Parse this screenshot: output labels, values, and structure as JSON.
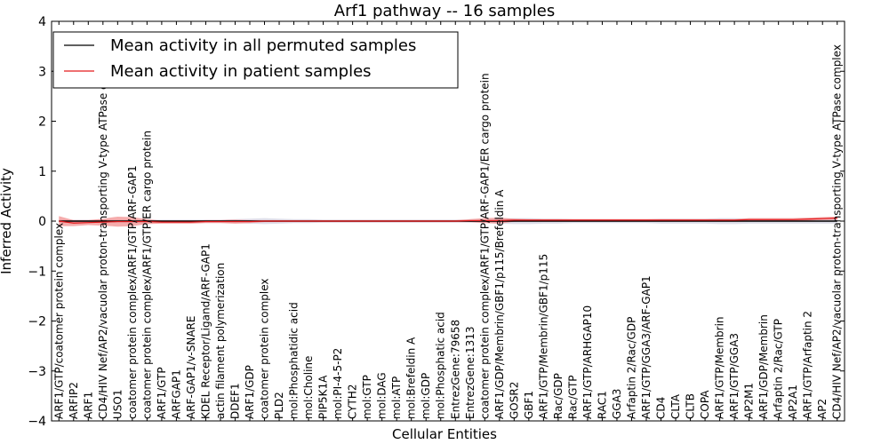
{
  "chart_data": {
    "type": "line",
    "title": "Arf1 pathway -- 16 samples",
    "xlabel": "Cellular Entities",
    "ylabel": "Inferred Activity",
    "ylim": [
      -4,
      4
    ],
    "yticks": [
      "−4",
      "−3",
      "−2",
      "−1",
      "0",
      "1",
      "2",
      "3",
      "4"
    ],
    "legend_position": "top-left",
    "categories": [
      "ARF1/GTP/coatomer protein complex",
      "ARFIP2",
      "ARF1",
      "CD4/HIV Nef/AP2/vacuolar proton-transporting V-type ATPase complex",
      "USO1",
      "coatomer protein complex/ARF1/GTP/ARF-GAP1",
      "coatomer protein complex/ARF1/GTP/ER cargo protein",
      "ARF1/GTP",
      "ARFGAP1",
      "ARF-GAP1/v-SNARE",
      "KDEL Receptor/Ligand/ARF-GAP1",
      "actin filament polymerization",
      "DDEF1",
      "ARF1/GDP",
      "coatomer protein complex",
      "PLD2",
      "mol:Phosphatidic acid",
      "mol:Choline",
      "PIP5K1A",
      "mol:PI-4-5-P2",
      "CYTH2",
      "mol:GTP",
      "mol:DAG",
      "mol:ATP",
      "mol:Brefeldin A",
      "mol:GDP",
      "mol:Phosphatic acid",
      "EntrezGene:79658",
      "EntrezGene:1313",
      "coatomer protein complex/ARF1/GTP/ARF-GAP1/ER cargo protein",
      "ARF1/GDP/Membrin/GBF1/p115/Brefeldin A",
      "GOSR2",
      "GBF1",
      "ARF1/GTP/Membrin/GBF1/p115",
      "Rac/GDP",
      "Rac/GTP",
      "ARF1/GTP/ARHGAP10",
      "RAC1",
      "GGA3",
      "Arfaptin 2/Rac/GDP",
      "ARF1/GTP/GGA3/ARF-GAP1",
      "CD4",
      "CLTA",
      "CLTB",
      "COPA",
      "ARF1/GTP/Membrin",
      "ARF1/GTP/GGA3",
      "AP2M1",
      "ARF1/GDP/Membrin",
      "Arfaptin 2/Rac/GTP",
      "AP2A1",
      "ARF1/GTP/Arfaptin 2",
      "AP2",
      "CD4/HIV Nef/AP2/vacuolar proton-transporting V-type ATPase complex"
    ],
    "series": [
      {
        "name": "Mean activity in all permuted samples",
        "color": "#000000",
        "values": [
          0,
          0,
          0,
          0,
          0,
          0,
          0,
          0,
          0,
          0,
          0,
          0,
          0,
          0,
          0,
          0,
          0,
          0,
          0,
          0,
          0,
          0,
          0,
          0,
          0,
          0,
          0,
          0,
          0,
          0,
          0,
          0,
          0,
          0,
          0,
          0,
          0,
          0,
          0,
          0,
          0,
          0,
          0,
          0,
          0,
          0,
          0,
          0,
          0,
          0,
          0,
          0,
          0,
          0
        ],
        "band_halfwidth": [
          0.03,
          0.03,
          0.03,
          0.03,
          0.03,
          0.03,
          0.03,
          0.03,
          0.03,
          0.03,
          0.03,
          0.03,
          0.04,
          0.05,
          0.06,
          0.05,
          0.04,
          0.04,
          0.03,
          0.03,
          0.03,
          0.03,
          0.03,
          0.03,
          0.03,
          0.03,
          0.03,
          0.03,
          0.03,
          0.03,
          0.05,
          0.06,
          0.06,
          0.05,
          0.05,
          0.04,
          0.04,
          0.04,
          0.04,
          0.04,
          0.04,
          0.05,
          0.05,
          0.05,
          0.05,
          0.06,
          0.06,
          0.05,
          0.05,
          0.05,
          0.05,
          0.05,
          0.05,
          0.05
        ],
        "band_color": "#b8b8d0"
      },
      {
        "name": "Mean activity in patient samples",
        "color": "#e41a1c",
        "values": [
          0.0,
          -0.04,
          -0.03,
          -0.02,
          -0.01,
          -0.01,
          -0.01,
          -0.02,
          -0.02,
          -0.02,
          -0.01,
          -0.01,
          -0.01,
          -0.01,
          0.0,
          0.0,
          0.0,
          0.0,
          0.0,
          0.0,
          0.0,
          0.0,
          0.0,
          0.0,
          0.0,
          0.0,
          0.0,
          0.0,
          0.01,
          0.01,
          0.01,
          0.02,
          0.02,
          0.02,
          0.02,
          0.02,
          0.02,
          0.02,
          0.02,
          0.02,
          0.02,
          0.02,
          0.02,
          0.02,
          0.02,
          0.02,
          0.02,
          0.03,
          0.03,
          0.03,
          0.03,
          0.04,
          0.05,
          0.06
        ],
        "band_halfwidth": [
          0.1,
          0.06,
          0.05,
          0.07,
          0.1,
          0.09,
          0.05,
          0.03,
          0.03,
          0.03,
          0.03,
          0.03,
          0.04,
          0.03,
          0.02,
          0.02,
          0.02,
          0.02,
          0.02,
          0.02,
          0.02,
          0.02,
          0.02,
          0.02,
          0.02,
          0.02,
          0.02,
          0.02,
          0.03,
          0.05,
          0.06,
          0.03,
          0.02,
          0.02,
          0.02,
          0.02,
          0.02,
          0.02,
          0.02,
          0.02,
          0.02,
          0.02,
          0.02,
          0.02,
          0.02,
          0.02,
          0.02,
          0.03,
          0.03,
          0.03,
          0.03,
          0.03,
          0.03,
          0.03
        ],
        "band_color": "#f08080"
      }
    ]
  }
}
